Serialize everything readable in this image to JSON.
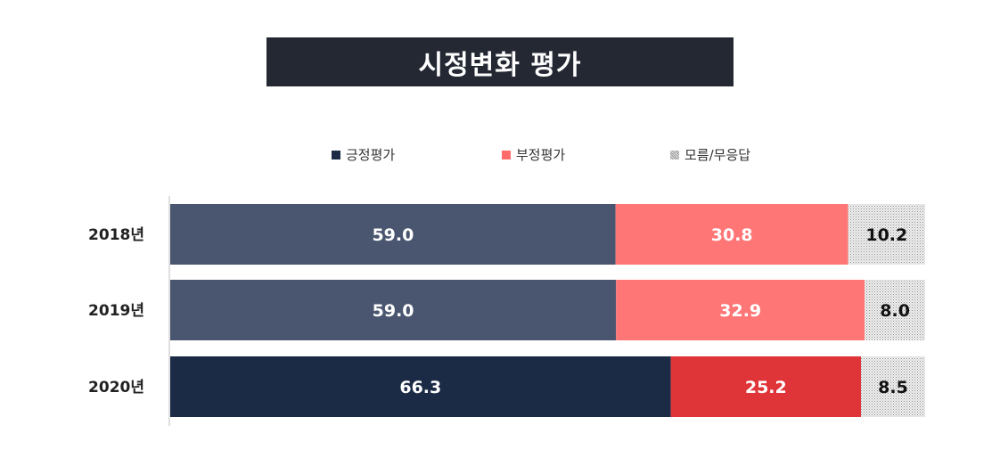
{
  "title": "시정변화 평가",
  "legend": {
    "positive": "긍정평가",
    "negative": "부정평가",
    "unknown": "모름/무응답"
  },
  "colors": {
    "title_bg": "#232833",
    "positive_past": "#4a5670",
    "positive_current": "#1b2a45",
    "negative_past": "#ff7676",
    "negative_current": "#e03538",
    "unknown": "#d9d9d9",
    "label_light": "#ffffff",
    "label_dark": "#111111"
  },
  "chart_data": {
    "type": "bar",
    "orientation": "horizontal",
    "stacked": true,
    "title": "시정변화 평가",
    "categories": [
      "2018년",
      "2019년",
      "2020년"
    ],
    "series": [
      {
        "name": "긍정평가",
        "values": [
          59.0,
          59.0,
          66.3
        ],
        "labels": [
          "59.0",
          "59.0",
          "66.3"
        ]
      },
      {
        "name": "부정평가",
        "values": [
          30.8,
          32.9,
          25.2
        ],
        "labels": [
          "30.8",
          "32.9",
          "25.2"
        ]
      },
      {
        "name": "모름/무응답",
        "values": [
          10.2,
          8.0,
          8.5
        ],
        "labels": [
          "10.2",
          "8.0",
          "8.5"
        ]
      }
    ],
    "xlim": [
      0,
      100
    ],
    "legend_position": "top",
    "grid": false
  }
}
